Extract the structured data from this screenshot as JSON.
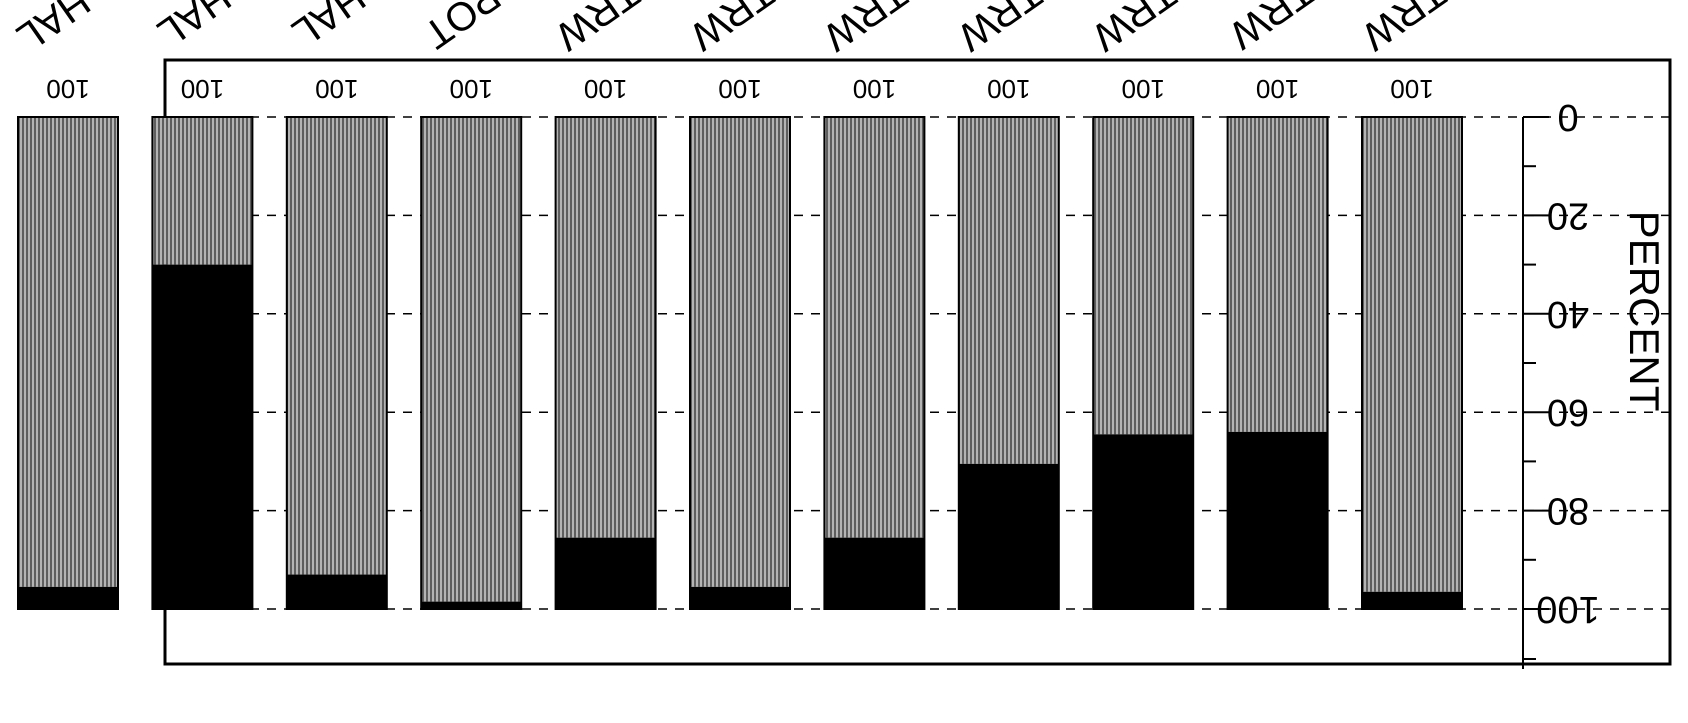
{
  "chart_data": {
    "type": "bar",
    "stacked": true,
    "orientation": "vertical, image rotated 180 degrees",
    "categories": [
      "P-TRW",
      "L-TRW",
      "H-TRW",
      "D-TRW",
      "C-TRW",
      "B-TRW",
      "A-TRW",
      "C-POT",
      "S-HAL",
      "K-HAL",
      "C--HAL"
    ],
    "series": [
      {
        "values": [
          96.5,
          64,
          64.5,
          70.5,
          85.5,
          95.5,
          85.5,
          98.5,
          93,
          30,
          95.5
        ],
        "color": "#9a9a9a"
      },
      {
        "values": [
          3.5,
          36,
          35.5,
          29.5,
          14.5,
          4.5,
          14.5,
          1.5,
          7,
          70,
          4.5
        ],
        "color": "#000000"
      }
    ],
    "bar_totals": [
      "100",
      "100",
      "100",
      "100",
      "100",
      "100",
      "100",
      "100",
      "100",
      "100",
      "100"
    ],
    "ylabel": "PERCENT",
    "yticks": [
      "0",
      "20",
      "40",
      "60",
      "80",
      "100"
    ],
    "ylim": [
      0,
      100
    ],
    "grid": "dashed horizontal lines at major ticks"
  }
}
